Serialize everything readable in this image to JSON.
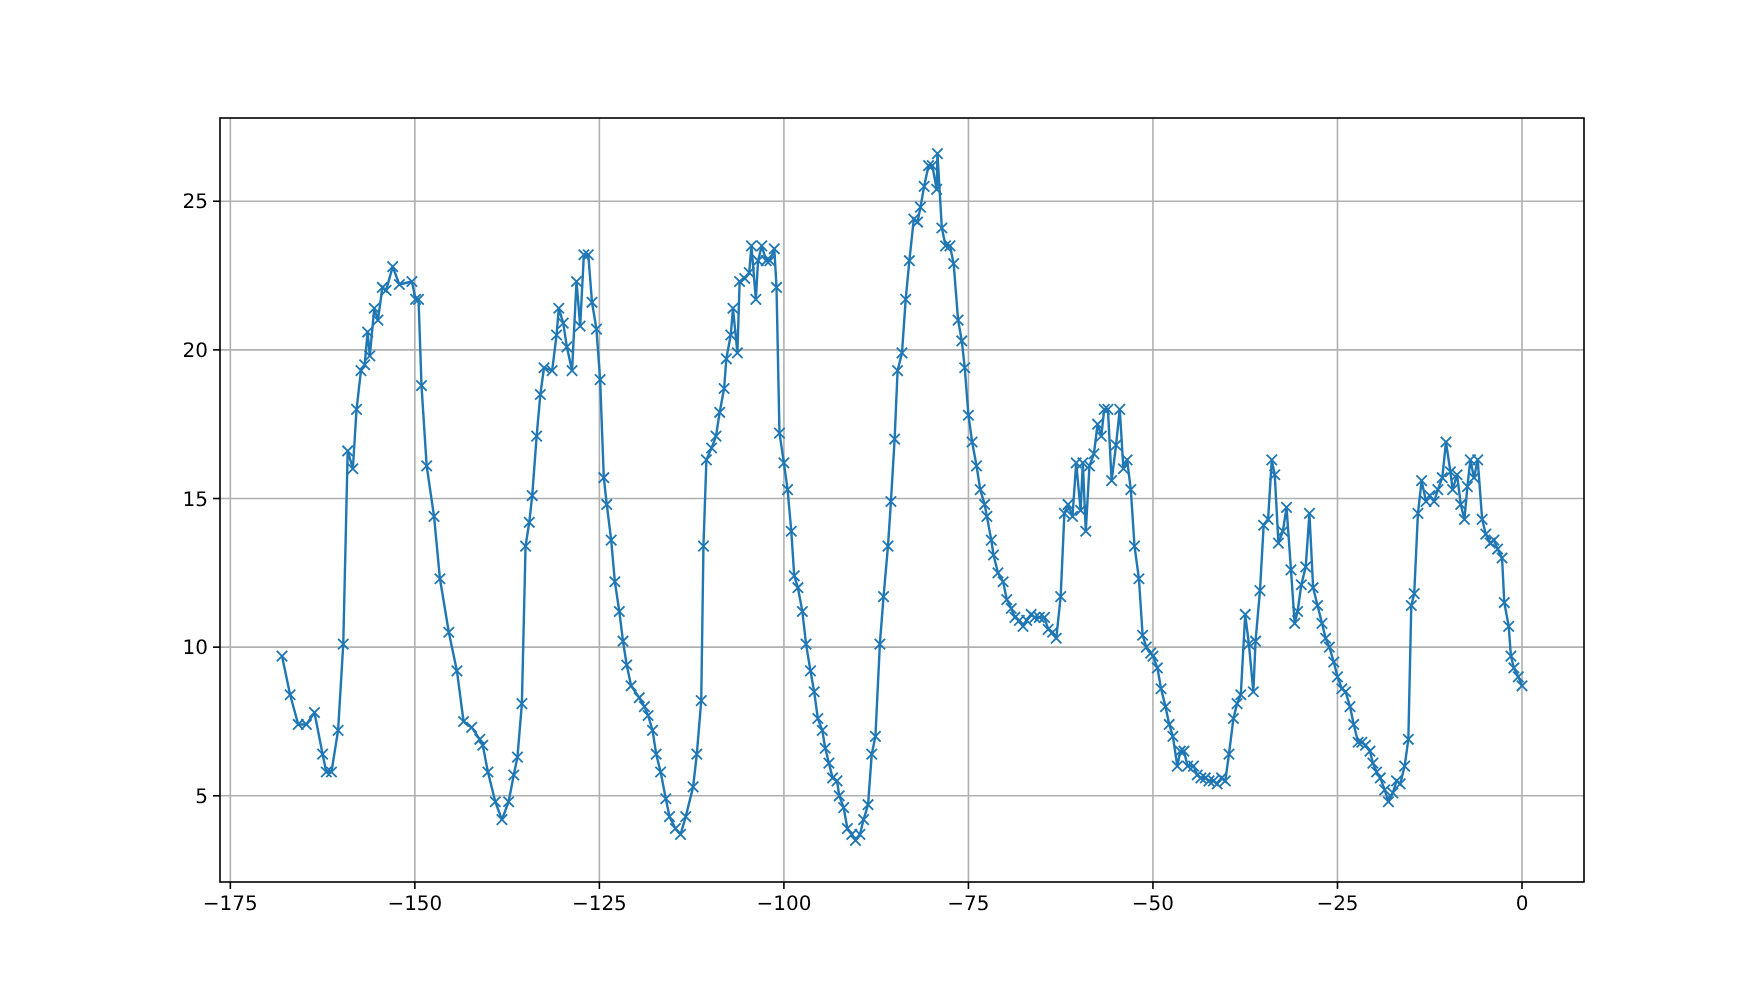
{
  "chart_data": {
    "type": "line",
    "marker": "cross",
    "line_style": "solid",
    "grid": true,
    "xlim": [
      -176.4,
      8.4
    ],
    "ylim": [
      2.1,
      27.8
    ],
    "xticks": [
      -175,
      -150,
      -125,
      -100,
      -75,
      -50,
      -25,
      0
    ],
    "yticks": [
      5,
      10,
      15,
      20,
      25
    ],
    "series": [
      {
        "color": "#1f77b4",
        "x": [
          -168.0,
          -166.9,
          -165.8,
          -164.7,
          -163.6,
          -162.5,
          -162.0,
          -161.3,
          -160.4,
          -159.7,
          -159.1,
          -158.4,
          -157.9,
          -157.3,
          -156.8,
          -156.4,
          -156.1,
          -155.5,
          -155.0,
          -154.4,
          -153.9,
          -153.0,
          -152.1,
          -150.4,
          -149.9,
          -149.5,
          -149.1,
          -148.4,
          -147.4,
          -146.6,
          -145.4,
          -144.3,
          -143.4,
          -142.3,
          -141.2,
          -140.8,
          -140.1,
          -139.1,
          -138.2,
          -137.3,
          -136.6,
          -136.1,
          -135.5,
          -135.0,
          -134.5,
          -134.1,
          -133.5,
          -133.0,
          -132.5,
          -131.4,
          -130.8,
          -130.5,
          -129.9,
          -129.4,
          -128.7,
          -128.1,
          -127.6,
          -127.1,
          -126.5,
          -126.0,
          -125.4,
          -124.9,
          -124.4,
          -124.0,
          -123.4,
          -122.9,
          -122.3,
          -121.8,
          -121.3,
          -120.7,
          -119.6,
          -118.9,
          -118.4,
          -117.8,
          -117.3,
          -116.7,
          -116.0,
          -115.5,
          -114.7,
          -114.0,
          -113.3,
          -112.3,
          -111.8,
          -111.2,
          -110.9,
          -110.5,
          -109.8,
          -109.2,
          -108.7,
          -108.1,
          -107.8,
          -107.2,
          -106.9,
          -106.3,
          -106.0,
          -105.3,
          -104.7,
          -104.4,
          -103.8,
          -103.5,
          -103.0,
          -102.4,
          -101.9,
          -101.3,
          -101.0,
          -100.6,
          -100.0,
          -99.5,
          -99.0,
          -98.6,
          -98.1,
          -97.5,
          -97.0,
          -96.4,
          -95.9,
          -95.4,
          -94.8,
          -94.4,
          -93.9,
          -93.4,
          -92.8,
          -92.5,
          -91.9,
          -91.4,
          -90.8,
          -90.3,
          -89.7,
          -89.2,
          -88.6,
          -88.1,
          -87.6,
          -87.0,
          -86.5,
          -85.9,
          -85.5,
          -85.0,
          -84.6,
          -84.0,
          -83.5,
          -83.0,
          -82.4,
          -81.9,
          -81.5,
          -81.0,
          -80.4,
          -79.9,
          -79.3,
          -79.2,
          -78.6,
          -78.1,
          -77.5,
          -77.0,
          -76.4,
          -75.9,
          -75.5,
          -75.0,
          -74.5,
          -73.9,
          -73.4,
          -72.8,
          -72.5,
          -71.9,
          -71.6,
          -71.0,
          -70.3,
          -69.8,
          -69.2,
          -68.7,
          -68.1,
          -67.6,
          -67.1,
          -66.5,
          -66.0,
          -65.4,
          -64.7,
          -64.2,
          -63.6,
          -63.1,
          -62.5,
          -62.0,
          -61.5,
          -60.9,
          -60.4,
          -59.8,
          -59.5,
          -59.1,
          -58.6,
          -58.0,
          -57.5,
          -57.0,
          -56.6,
          -56.1,
          -55.6,
          -55.0,
          -54.5,
          -54.0,
          -53.5,
          -53.0,
          -52.5,
          -51.9,
          -51.4,
          -50.9,
          -50.3,
          -50.0,
          -49.4,
          -48.9,
          -48.3,
          -47.8,
          -47.3,
          -46.7,
          -46.3,
          -45.8,
          -45.3,
          -44.5,
          -44.0,
          -43.5,
          -42.9,
          -42.4,
          -41.8,
          -41.3,
          -40.7,
          -40.2,
          -39.7,
          -39.1,
          -38.6,
          -38.1,
          -37.5,
          -37.0,
          -36.4,
          -36.1,
          -35.5,
          -35.0,
          -34.4,
          -33.9,
          -33.5,
          -33.0,
          -32.4,
          -31.9,
          -31.3,
          -30.8,
          -30.4,
          -29.9,
          -29.3,
          -28.8,
          -28.3,
          -27.7,
          -27.1,
          -26.6,
          -26.1,
          -25.5,
          -25.0,
          -24.4,
          -23.9,
          -23.3,
          -22.8,
          -22.2,
          -21.7,
          -21.2,
          -20.6,
          -20.2,
          -19.7,
          -19.2,
          -18.6,
          -18.1,
          -17.5,
          -17.0,
          -16.5,
          -15.9,
          -15.4,
          -15.0,
          -14.6,
          -14.1,
          -13.6,
          -13.0,
          -12.5,
          -11.9,
          -11.4,
          -10.8,
          -10.3,
          -9.7,
          -9.4,
          -8.8,
          -8.3,
          -7.8,
          -7.4,
          -7.0,
          -6.5,
          -6.0,
          -5.4,
          -4.9,
          -4.3,
          -3.8,
          -3.3,
          -2.7,
          -2.4,
          -1.8,
          -1.5,
          -1.1,
          -0.5,
          0.0
        ],
        "values": [
          9.7,
          8.4,
          7.4,
          7.4,
          7.8,
          6.4,
          5.8,
          5.8,
          7.2,
          10.1,
          16.6,
          16.0,
          18.0,
          19.3,
          19.5,
          20.6,
          19.8,
          21.4,
          21.0,
          22.1,
          22.0,
          22.8,
          22.2,
          22.3,
          21.7,
          21.7,
          18.8,
          16.1,
          14.4,
          12.3,
          10.5,
          9.2,
          7.5,
          7.3,
          6.9,
          6.7,
          5.8,
          4.8,
          4.2,
          4.8,
          5.7,
          6.3,
          8.1,
          13.4,
          14.2,
          15.1,
          17.1,
          18.5,
          19.4,
          19.3,
          20.5,
          21.4,
          20.9,
          20.1,
          19.3,
          22.3,
          20.8,
          23.2,
          23.2,
          21.6,
          20.7,
          19.0,
          15.7,
          14.8,
          13.6,
          12.2,
          11.2,
          10.2,
          9.4,
          8.7,
          8.3,
          8.0,
          7.7,
          7.2,
          6.4,
          5.8,
          4.9,
          4.3,
          3.9,
          3.7,
          4.3,
          5.3,
          6.4,
          8.2,
          13.4,
          16.3,
          16.7,
          17.1,
          17.9,
          18.7,
          19.7,
          20.5,
          21.4,
          19.9,
          22.3,
          22.4,
          22.6,
          23.5,
          21.7,
          23.0,
          23.5,
          23.0,
          23.0,
          23.4,
          22.1,
          17.2,
          16.2,
          15.3,
          13.9,
          12.4,
          12.0,
          11.2,
          10.1,
          9.2,
          8.5,
          7.6,
          7.2,
          6.6,
          6.1,
          5.6,
          5.5,
          5.0,
          4.6,
          3.9,
          3.7,
          3.5,
          3.7,
          4.2,
          4.7,
          6.4,
          7.0,
          10.1,
          11.7,
          13.4,
          14.9,
          17.0,
          19.3,
          19.9,
          21.7,
          23.0,
          24.4,
          24.3,
          24.8,
          25.5,
          26.2,
          26.2,
          25.4,
          26.6,
          24.1,
          23.5,
          23.5,
          22.9,
          21.0,
          20.3,
          19.4,
          17.8,
          16.9,
          16.1,
          15.3,
          14.8,
          14.4,
          13.6,
          13.1,
          12.5,
          12.2,
          11.6,
          11.3,
          11.0,
          10.9,
          10.7,
          10.9,
          11.1,
          11.0,
          11.0,
          11.0,
          10.6,
          10.5,
          10.3,
          11.7,
          14.5,
          14.8,
          14.4,
          16.2,
          14.6,
          16.2,
          13.9,
          16.1,
          16.5,
          17.5,
          17.1,
          18.0,
          18.0,
          15.6,
          16.8,
          18.0,
          16.0,
          16.3,
          15.3,
          13.4,
          12.3,
          10.4,
          10.0,
          9.8,
          9.7,
          9.3,
          8.6,
          8.0,
          7.4,
          7.0,
          6.0,
          6.5,
          6.5,
          6.0,
          6.0,
          5.7,
          5.6,
          5.6,
          5.5,
          5.5,
          5.4,
          5.6,
          5.5,
          6.4,
          7.6,
          8.1,
          8.4,
          11.1,
          10.1,
          8.5,
          10.2,
          11.9,
          14.1,
          14.3,
          16.3,
          15.8,
          13.5,
          13.9,
          14.7,
          12.6,
          10.8,
          11.2,
          12.1,
          12.7,
          14.5,
          12.0,
          11.4,
          10.8,
          10.3,
          10.0,
          9.5,
          9.0,
          8.6,
          8.5,
          8.0,
          7.4,
          6.8,
          6.8,
          6.7,
          6.5,
          6.1,
          5.8,
          5.6,
          5.2,
          4.8,
          5.1,
          5.5,
          5.4,
          6.0,
          6.9,
          11.4,
          11.8,
          14.5,
          15.6,
          14.9,
          15.1,
          14.9,
          15.3,
          15.7,
          16.9,
          15.9,
          15.3,
          15.8,
          14.8,
          14.3,
          15.4,
          16.3,
          15.7,
          16.3,
          14.3,
          13.8,
          13.5,
          13.6,
          13.3,
          13.0,
          11.5,
          10.7,
          9.7,
          9.3,
          9.0,
          8.7
        ]
      }
    ]
  }
}
